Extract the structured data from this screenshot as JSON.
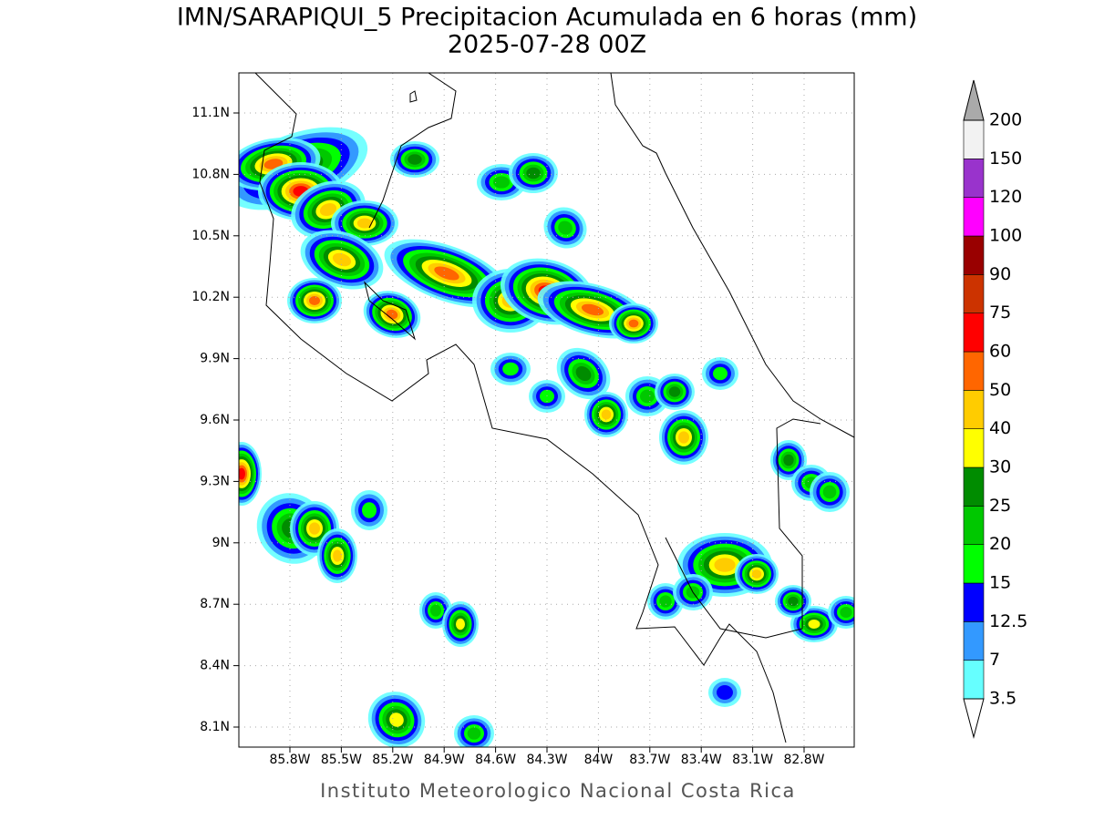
{
  "header": {
    "title": "IMN/SARAPIQUI_5 Precipitacion Acumulada en 6 horas (mm)",
    "subtitle": "2025-07-28 00Z"
  },
  "map": {
    "lat_labels": [
      "11.1N",
      "10.8N",
      "10.5N",
      "10.2N",
      "9.9N",
      "9.6N",
      "9.3N",
      "9N",
      "8.7N",
      "8.4N",
      "8.1N"
    ],
    "lon_labels": [
      "85.8W",
      "85.5W",
      "85.2W",
      "84.9W",
      "84.6W",
      "84.3W",
      "84W",
      "83.7W",
      "83.4W",
      "83.1W",
      "82.8W"
    ]
  },
  "legend": {
    "levels": [
      "3.5",
      "7",
      "12.5",
      "15",
      "20",
      "25",
      "30",
      "40",
      "50",
      "60",
      "75",
      "90",
      "100",
      "120",
      "150",
      "200"
    ],
    "colors": [
      "#66ffff",
      "#3399ff",
      "#0000ff",
      "#00ff00",
      "#00c800",
      "#008c00",
      "#ffff00",
      "#ffcc00",
      "#ff6600",
      "#ff0000",
      "#cc3300",
      "#990000",
      "#ff00ff",
      "#9933cc",
      "#f2f2f2"
    ]
  },
  "footer": "Instituto Meteorologico Nacional Costa Rica"
}
